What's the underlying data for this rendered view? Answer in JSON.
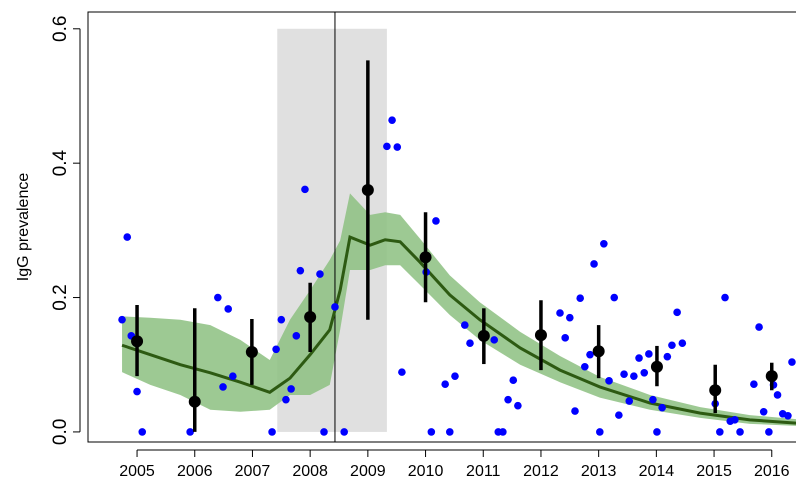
{
  "chart_data": {
    "type": "scatter",
    "y_label": "IgG prevalence",
    "xlim": [
      2004.15,
      2016.42
    ],
    "ylim": [
      -0.015,
      0.625
    ],
    "xticks": [
      2005,
      2006,
      2007,
      2008,
      2009,
      2010,
      2011,
      2012,
      2013,
      2014,
      2015,
      2016
    ],
    "yticks": [
      {
        "value": 0,
        "label": "0.0"
      },
      {
        "value": 0.2,
        "label": "0.2"
      },
      {
        "value": 0.4,
        "label": "0.4"
      },
      {
        "value": 0.6,
        "label": "0.6"
      }
    ],
    "grid": false,
    "shaded_period": [
      2007.43,
      2009.33
    ],
    "shaded_color": "#e0e0e0",
    "event_line": 2008.43,
    "fit": {
      "color": "#2d5a12",
      "band_color": "#8cbf80",
      "x": [
        2004.74,
        2005.23,
        2005.75,
        2006.27,
        2006.79,
        2007.3,
        2007.65,
        2008.0,
        2008.34,
        2008.52,
        2008.69,
        2009.04,
        2009.3,
        2009.56,
        2009.9,
        2010.42,
        2010.94,
        2011.64,
        2012.33,
        2013.02,
        2013.89,
        2014.76,
        2015.62,
        2016.42
      ],
      "values": [
        0.129,
        0.115,
        0.1,
        0.088,
        0.074,
        0.059,
        0.08,
        0.115,
        0.152,
        0.211,
        0.29,
        0.278,
        0.286,
        0.283,
        0.253,
        0.204,
        0.167,
        0.125,
        0.092,
        0.067,
        0.043,
        0.028,
        0.018,
        0.013
      ],
      "lower": [
        0.089,
        0.07,
        0.055,
        0.033,
        0.03,
        0.033,
        0.055,
        0.055,
        0.07,
        0.152,
        0.241,
        0.241,
        0.248,
        0.248,
        0.219,
        0.174,
        0.137,
        0.1,
        0.074,
        0.051,
        0.033,
        0.021,
        0.012,
        0.009
      ],
      "upper": [
        0.172,
        0.17,
        0.167,
        0.159,
        0.137,
        0.107,
        0.167,
        0.211,
        0.256,
        0.285,
        0.355,
        0.323,
        0.327,
        0.323,
        0.288,
        0.233,
        0.193,
        0.149,
        0.113,
        0.082,
        0.055,
        0.037,
        0.025,
        0.019
      ]
    },
    "points": {
      "color": "#0000ff",
      "x": [
        2004.74,
        2004.83,
        2004.9,
        2005.0,
        2005.09,
        2005.92,
        2006.4,
        2006.49,
        2006.58,
        2006.66,
        2007.34,
        2007.41,
        2007.5,
        2007.58,
        2007.67,
        2007.76,
        2007.83,
        2007.91,
        2008.17,
        2008.24,
        2008.43,
        2008.59,
        2009.33,
        2009.42,
        2009.51,
        2009.59,
        2010.01,
        2010.1,
        2010.18,
        2010.34,
        2010.42,
        2010.51,
        2010.68,
        2010.77,
        2011.19,
        2011.26,
        2011.34,
        2011.43,
        2011.52,
        2011.6,
        2012.33,
        2012.42,
        2012.5,
        2012.59,
        2012.68,
        2012.76,
        2012.85,
        2012.92,
        2013.02,
        2013.09,
        2013.18,
        2013.27,
        2013.35,
        2013.44,
        2013.53,
        2013.61,
        2013.7,
        2013.79,
        2013.87,
        2013.94,
        2014.01,
        2014.1,
        2014.19,
        2014.27,
        2014.36,
        2014.45,
        2015.02,
        2015.1,
        2015.19,
        2015.28,
        2015.36,
        2015.45,
        2015.69,
        2015.78,
        2015.86,
        2015.95,
        2016.03,
        2016.1,
        2016.19,
        2016.28,
        2016.35
      ],
      "values": [
        0.167,
        0.29,
        0.143,
        0.06,
        0,
        0,
        0.2,
        0.067,
        0.183,
        0.083,
        0,
        0.123,
        0.167,
        0.048,
        0.064,
        0.143,
        0.24,
        0.361,
        0.235,
        0,
        0.186,
        0,
        0.425,
        0.464,
        0.424,
        0.089,
        0.238,
        0,
        0.314,
        0.071,
        0,
        0.083,
        0.159,
        0.132,
        0.137,
        0,
        0,
        0.048,
        0.077,
        0.039,
        0.177,
        0.14,
        0.17,
        0.031,
        0.199,
        0.097,
        0.115,
        0.25,
        0,
        0.28,
        0.076,
        0.2,
        0.025,
        0.086,
        0.046,
        0.083,
        0.11,
        0.088,
        0.116,
        0.048,
        0,
        0.036,
        0.112,
        0.129,
        0.178,
        0.132,
        0.042,
        0,
        0.2,
        0.016,
        0.018,
        0,
        0.071,
        0.156,
        0.03,
        0,
        0.07,
        0.055,
        0.027,
        0.024,
        0.104
      ]
    },
    "means": {
      "color": "#000000",
      "x": [
        2005.0,
        2006.0,
        2006.99,
        2008.0,
        2009.0,
        2010.0,
        2011.01,
        2012.0,
        2013.0,
        2014.01,
        2015.02,
        2016.0
      ],
      "values": [
        0.135,
        0.045,
        0.119,
        0.171,
        0.36,
        0.26,
        0.143,
        0.144,
        0.12,
        0.097,
        0.062,
        0.083
      ],
      "lower": [
        0.083,
        0,
        0.07,
        0.119,
        0.167,
        0.193,
        0.101,
        0.092,
        0.08,
        0.068,
        0.028,
        0.062
      ],
      "upper": [
        0.189,
        0.184,
        0.168,
        0.222,
        0.553,
        0.327,
        0.184,
        0.196,
        0.159,
        0.128,
        0.1,
        0.103
      ]
    }
  }
}
